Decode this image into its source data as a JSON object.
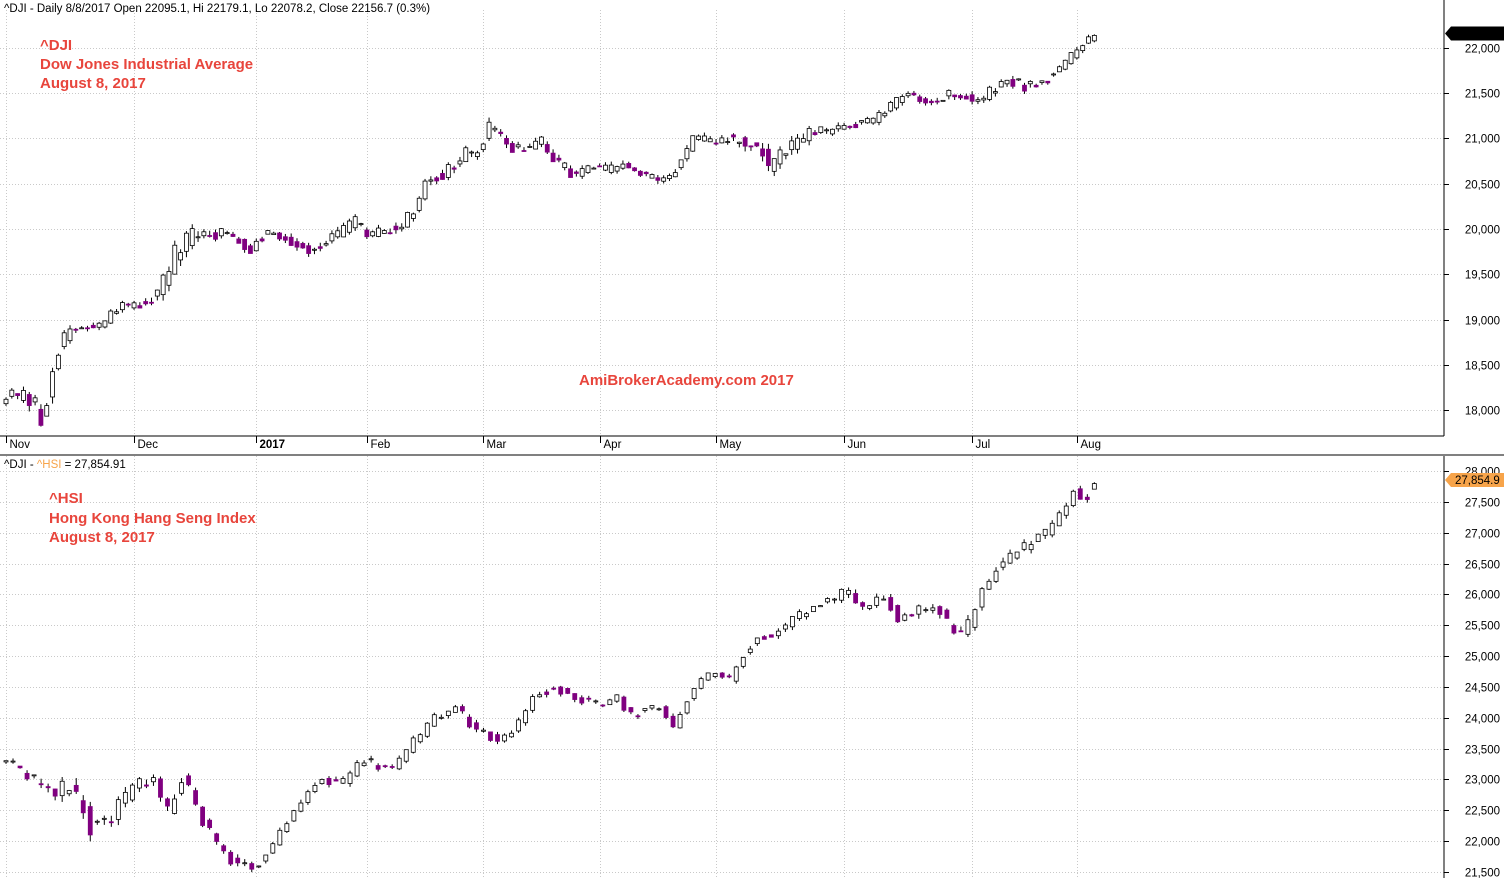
{
  "theme": {
    "bear_color": "#800080",
    "bull_color": "#ffffff",
    "outline_color": "#000000",
    "annotation_color": "#e8453c",
    "watermark_color": "#e8453c",
    "tag_top_color": "#000000",
    "tag_bottom_color": "#f7a44a",
    "hsi_series_label_color": "#f7a44a"
  },
  "chart_data": [
    {
      "type": "candlestick",
      "header": "^DJI - Daily 8/8/2017 Open 22095.1, Hi 22179.1, Lo 22078.2, Close 22156.7 (0.3%)",
      "annotation_lines": [
        "^DJI",
        "Dow Jones Industrial Average",
        "August 8, 2017"
      ],
      "watermark": "AmiBrokerAcademy.com 2017",
      "ylim": [
        17750,
        22250
      ],
      "y_ticks": [
        18000,
        18500,
        19000,
        19500,
        20000,
        20500,
        21000,
        21500,
        22000
      ],
      "y_tick_labels": [
        "18,000",
        "18,500",
        "19,000",
        "19,500",
        "20,000",
        "20,500",
        "21,000",
        "21,500",
        "22,000"
      ],
      "last_value_label": "22,156.7",
      "last_value": 22156.7,
      "month_labels": [
        "Nov",
        "Dec",
        "2017",
        "Feb",
        "Mar",
        "Apr",
        "May",
        "Jun",
        "Jul",
        "Aug"
      ],
      "month_bar_index": [
        0,
        22,
        43,
        62,
        82,
        102,
        122,
        144,
        166,
        184
      ],
      "close_anchors": [
        [
          0,
          18180
        ],
        [
          3,
          18130
        ],
        [
          5,
          18020
        ],
        [
          6,
          17890
        ],
        [
          7,
          18170
        ],
        [
          9,
          18700
        ],
        [
          11,
          18880
        ],
        [
          13,
          18900
        ],
        [
          17,
          18950
        ],
        [
          18,
          19050
        ],
        [
          20,
          19150
        ],
        [
          22,
          19150
        ],
        [
          26,
          19270
        ],
        [
          29,
          19700
        ],
        [
          32,
          19920
        ],
        [
          35,
          19950
        ],
        [
          38,
          19950
        ],
        [
          42,
          19780
        ],
        [
          43,
          19900
        ],
        [
          45,
          19960
        ],
        [
          48,
          19900
        ],
        [
          52,
          19770
        ],
        [
          56,
          19900
        ],
        [
          60,
          20080
        ],
        [
          62,
          19920
        ],
        [
          65,
          19980
        ],
        [
          68,
          20050
        ],
        [
          70,
          20180
        ],
        [
          72,
          20550
        ],
        [
          75,
          20600
        ],
        [
          79,
          20820
        ],
        [
          81,
          20850
        ],
        [
          83,
          21100
        ],
        [
          86,
          20940
        ],
        [
          89,
          20880
        ],
        [
          92,
          20950
        ],
        [
          95,
          20700
        ],
        [
          98,
          20600
        ],
        [
          100,
          20680
        ],
        [
          103,
          20650
        ],
        [
          106,
          20700
        ],
        [
          109,
          20600
        ],
        [
          112,
          20520
        ],
        [
          114,
          20600
        ],
        [
          116,
          20760
        ],
        [
          118,
          21000
        ],
        [
          121,
          20950
        ],
        [
          124,
          21000
        ],
        [
          127,
          20950
        ],
        [
          130,
          20850
        ],
        [
          131,
          20650
        ],
        [
          134,
          20850
        ],
        [
          138,
          21050
        ],
        [
          142,
          21080
        ],
        [
          145,
          21150
        ],
        [
          149,
          21200
        ],
        [
          152,
          21350
        ],
        [
          155,
          21500
        ],
        [
          157,
          21450
        ],
        [
          160,
          21400
        ],
        [
          162,
          21500
        ],
        [
          165,
          21450
        ],
        [
          167,
          21400
        ],
        [
          170,
          21550
        ],
        [
          172,
          21640
        ],
        [
          175,
          21580
        ],
        [
          178,
          21620
        ],
        [
          181,
          21780
        ],
        [
          184,
          21960
        ],
        [
          186,
          22090
        ],
        [
          187,
          22157
        ]
      ],
      "range_anchors": [
        [
          0,
          110
        ],
        [
          7,
          260
        ],
        [
          10,
          130
        ],
        [
          22,
          100
        ],
        [
          28,
          230
        ],
        [
          40,
          110
        ],
        [
          82,
          160
        ],
        [
          95,
          120
        ],
        [
          120,
          110
        ],
        [
          131,
          220
        ],
        [
          145,
          90
        ],
        [
          170,
          130
        ],
        [
          187,
          101
        ]
      ]
    },
    {
      "type": "candlestick",
      "header_prefix": "^DJI - ",
      "header_series": "^HSI",
      "header_value": " = 27,854.91",
      "annotation_lines": [
        "^HSI",
        "Hong Kong Hang Seng Index",
        "August 8, 2017"
      ],
      "ylim": [
        21400,
        28000
      ],
      "y_ticks": [
        21500,
        22000,
        22500,
        23000,
        23500,
        24000,
        24500,
        25000,
        25500,
        26000,
        26500,
        27000,
        27500,
        28000
      ],
      "y_tick_labels": [
        "21,500",
        "22,000",
        "22,500",
        "23,000",
        "23,500",
        "24,000",
        "24,500",
        "25,000",
        "25,500",
        "26,000",
        "26,500",
        "27,000",
        "27,500",
        "28,000"
      ],
      "last_value_label": "27,854.9",
      "last_value": 27854.9,
      "close_anchors": [
        [
          0,
          23300
        ],
        [
          3,
          23050
        ],
        [
          5,
          22850
        ],
        [
          7,
          22700
        ],
        [
          9,
          22950
        ],
        [
          12,
          22250
        ],
        [
          15,
          22400
        ],
        [
          18,
          22900
        ],
        [
          21,
          22950
        ],
        [
          23,
          22500
        ],
        [
          25,
          23050
        ],
        [
          27,
          22550
        ],
        [
          30,
          21900
        ],
        [
          32,
          21700
        ],
        [
          35,
          21550
        ],
        [
          37,
          21800
        ],
        [
          40,
          22300
        ],
        [
          42,
          22650
        ],
        [
          44,
          22950
        ],
        [
          46,
          23000
        ],
        [
          48,
          22950
        ],
        [
          51,
          23300
        ],
        [
          55,
          23150
        ],
        [
          58,
          23600
        ],
        [
          61,
          24000
        ],
        [
          64,
          24150
        ],
        [
          67,
          23800
        ],
        [
          70,
          23650
        ],
        [
          72,
          23750
        ],
        [
          75,
          24350
        ],
        [
          78,
          24500
        ],
        [
          81,
          24350
        ],
        [
          84,
          24200
        ],
        [
          87,
          24300
        ],
        [
          89,
          24050
        ],
        [
          93,
          24200
        ],
        [
          95,
          23850
        ],
        [
          98,
          24500
        ],
        [
          101,
          24750
        ],
        [
          103,
          24600
        ],
        [
          105,
          25050
        ],
        [
          107,
          25300
        ],
        [
          110,
          25400
        ],
        [
          113,
          25650
        ],
        [
          116,
          25850
        ],
        [
          120,
          26050
        ],
        [
          122,
          25750
        ],
        [
          125,
          25950
        ],
        [
          127,
          25600
        ],
        [
          130,
          25700
        ],
        [
          132,
          25850
        ],
        [
          135,
          25400
        ],
        [
          136,
          25350
        ],
        [
          137,
          25500
        ],
        [
          139,
          26050
        ],
        [
          141,
          26400
        ],
        [
          143,
          26600
        ],
        [
          146,
          26850
        ],
        [
          148,
          27000
        ],
        [
          150,
          27250
        ],
        [
          152,
          27700
        ],
        [
          154,
          27500
        ],
        [
          155,
          27855
        ]
      ],
      "range_anchors": [
        [
          0,
          150
        ],
        [
          10,
          350
        ],
        [
          30,
          180
        ],
        [
          60,
          150
        ],
        [
          100,
          130
        ],
        [
          135,
          230
        ],
        [
          155,
          150
        ]
      ]
    }
  ]
}
